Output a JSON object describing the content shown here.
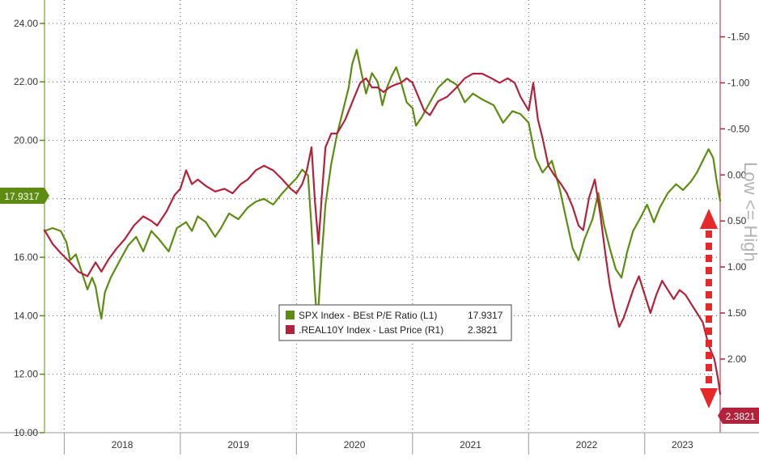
{
  "chart_data": {
    "type": "line",
    "title": "",
    "xlabel": "",
    "ylabel": "",
    "x_ticks": [
      "2018",
      "2019",
      "2020",
      "2021",
      "2022",
      "2023"
    ],
    "xlim": [
      2017.83,
      2023.65
    ],
    "y_left": {
      "lim": [
        10,
        24.8
      ],
      "ticks": [
        "10.00",
        "12.00",
        "14.00",
        "16.00",
        "18.00",
        "20.00",
        "22.00",
        "24.00"
      ]
    },
    "y_right": {
      "lim": [
        -1.9,
        2.8
      ],
      "inverted": true,
      "ticks": [
        "-1.50",
        "-1.00",
        "-0.50",
        "0.00",
        "0.50",
        "1.00",
        "1.50",
        "2.00"
      ]
    },
    "right_axis_annotation": "Low <= High",
    "grid": true,
    "legend_position": "bottom-center",
    "series": [
      {
        "name": "SPX Index - BEst P/E Ratio (L1)",
        "last_value": "17.9317",
        "axis": "left",
        "color": "#5e8c12",
        "points": [
          [
            2017.83,
            16.9
          ],
          [
            2017.9,
            17.0
          ],
          [
            2017.97,
            16.9
          ],
          [
            2018.02,
            16.5
          ],
          [
            2018.05,
            15.9
          ],
          [
            2018.1,
            16.1
          ],
          [
            2018.15,
            15.5
          ],
          [
            2018.2,
            14.9
          ],
          [
            2018.24,
            15.3
          ],
          [
            2018.27,
            15.0
          ],
          [
            2018.3,
            14.3
          ],
          [
            2018.32,
            13.9
          ],
          [
            2018.35,
            14.8
          ],
          [
            2018.4,
            15.3
          ],
          [
            2018.48,
            15.9
          ],
          [
            2018.55,
            16.4
          ],
          [
            2018.62,
            16.7
          ],
          [
            2018.68,
            16.2
          ],
          [
            2018.75,
            16.9
          ],
          [
            2018.82,
            16.6
          ],
          [
            2018.9,
            16.2
          ],
          [
            2018.97,
            17.0
          ],
          [
            2019.05,
            17.2
          ],
          [
            2019.1,
            16.9
          ],
          [
            2019.15,
            17.4
          ],
          [
            2019.22,
            17.2
          ],
          [
            2019.3,
            16.7
          ],
          [
            2019.35,
            17.0
          ],
          [
            2019.42,
            17.5
          ],
          [
            2019.5,
            17.3
          ],
          [
            2019.58,
            17.7
          ],
          [
            2019.65,
            17.9
          ],
          [
            2019.72,
            18.0
          ],
          [
            2019.8,
            17.8
          ],
          [
            2019.88,
            18.2
          ],
          [
            2019.95,
            18.5
          ],
          [
            2020.0,
            18.7
          ],
          [
            2020.05,
            19.0
          ],
          [
            2020.1,
            18.8
          ],
          [
            2020.13,
            17.0
          ],
          [
            2020.16,
            14.8
          ],
          [
            2020.18,
            13.7
          ],
          [
            2020.21,
            15.6
          ],
          [
            2020.25,
            17.8
          ],
          [
            2020.3,
            19.2
          ],
          [
            2020.35,
            20.2
          ],
          [
            2020.4,
            21.0
          ],
          [
            2020.45,
            21.8
          ],
          [
            2020.48,
            22.6
          ],
          [
            2020.52,
            23.1
          ],
          [
            2020.56,
            22.3
          ],
          [
            2020.6,
            21.6
          ],
          [
            2020.65,
            22.3
          ],
          [
            2020.7,
            22.0
          ],
          [
            2020.74,
            21.2
          ],
          [
            2020.78,
            21.8
          ],
          [
            2020.82,
            22.2
          ],
          [
            2020.86,
            22.5
          ],
          [
            2020.9,
            22.0
          ],
          [
            2020.95,
            21.3
          ],
          [
            2021.0,
            21.1
          ],
          [
            2021.03,
            20.5
          ],
          [
            2021.08,
            20.8
          ],
          [
            2021.15,
            21.3
          ],
          [
            2021.22,
            21.8
          ],
          [
            2021.3,
            22.1
          ],
          [
            2021.38,
            21.9
          ],
          [
            2021.45,
            21.3
          ],
          [
            2021.52,
            21.6
          ],
          [
            2021.6,
            21.4
          ],
          [
            2021.7,
            21.2
          ],
          [
            2021.78,
            20.6
          ],
          [
            2021.86,
            21.0
          ],
          [
            2021.93,
            20.9
          ],
          [
            2022.0,
            20.6
          ],
          [
            2022.06,
            19.4
          ],
          [
            2022.12,
            18.9
          ],
          [
            2022.2,
            19.3
          ],
          [
            2022.27,
            18.3
          ],
          [
            2022.33,
            17.2
          ],
          [
            2022.38,
            16.3
          ],
          [
            2022.43,
            15.9
          ],
          [
            2022.48,
            16.6
          ],
          [
            2022.55,
            17.3
          ],
          [
            2022.6,
            18.2
          ],
          [
            2022.65,
            17.1
          ],
          [
            2022.7,
            16.3
          ],
          [
            2022.75,
            15.6
          ],
          [
            2022.8,
            15.3
          ],
          [
            2022.85,
            16.2
          ],
          [
            2022.9,
            16.9
          ],
          [
            2022.97,
            17.4
          ],
          [
            2023.02,
            17.8
          ],
          [
            2023.08,
            17.2
          ],
          [
            2023.13,
            17.7
          ],
          [
            2023.2,
            18.2
          ],
          [
            2023.27,
            18.5
          ],
          [
            2023.33,
            18.3
          ],
          [
            2023.4,
            18.6
          ],
          [
            2023.45,
            18.9
          ],
          [
            2023.5,
            19.3
          ],
          [
            2023.55,
            19.7
          ],
          [
            2023.59,
            19.4
          ],
          [
            2023.62,
            18.6
          ],
          [
            2023.65,
            17.93
          ]
        ]
      },
      {
        "name": ".REAL10Y Index - Last Price (R1)",
        "last_value": "2.3821",
        "axis": "right",
        "color": "#b2223a",
        "points": [
          [
            2017.83,
            0.6
          ],
          [
            2017.9,
            0.75
          ],
          [
            2017.97,
            0.85
          ],
          [
            2018.05,
            0.95
          ],
          [
            2018.12,
            1.05
          ],
          [
            2018.2,
            1.1
          ],
          [
            2018.27,
            0.95
          ],
          [
            2018.32,
            1.05
          ],
          [
            2018.38,
            0.92
          ],
          [
            2018.45,
            0.8
          ],
          [
            2018.52,
            0.7
          ],
          [
            2018.6,
            0.55
          ],
          [
            2018.68,
            0.45
          ],
          [
            2018.75,
            0.5
          ],
          [
            2018.8,
            0.55
          ],
          [
            2018.88,
            0.4
          ],
          [
            2018.95,
            0.22
          ],
          [
            2019.0,
            0.15
          ],
          [
            2019.05,
            -0.05
          ],
          [
            2019.1,
            0.1
          ],
          [
            2019.15,
            0.05
          ],
          [
            2019.22,
            0.12
          ],
          [
            2019.3,
            0.18
          ],
          [
            2019.38,
            0.15
          ],
          [
            2019.45,
            0.2
          ],
          [
            2019.52,
            0.1
          ],
          [
            2019.58,
            0.05
          ],
          [
            2019.65,
            -0.05
          ],
          [
            2019.72,
            -0.1
          ],
          [
            2019.8,
            -0.05
          ],
          [
            2019.88,
            0.05
          ],
          [
            2019.95,
            0.15
          ],
          [
            2020.0,
            0.2
          ],
          [
            2020.05,
            0.1
          ],
          [
            2020.09,
            -0.05
          ],
          [
            2020.13,
            -0.3
          ],
          [
            2020.16,
            0.3
          ],
          [
            2020.19,
            0.75
          ],
          [
            2020.22,
            0.2
          ],
          [
            2020.25,
            -0.3
          ],
          [
            2020.3,
            -0.45
          ],
          [
            2020.35,
            -0.45
          ],
          [
            2020.42,
            -0.6
          ],
          [
            2020.5,
            -0.85
          ],
          [
            2020.55,
            -1.0
          ],
          [
            2020.6,
            -1.05
          ],
          [
            2020.65,
            -0.95
          ],
          [
            2020.7,
            -0.95
          ],
          [
            2020.75,
            -0.9
          ],
          [
            2020.8,
            -0.95
          ],
          [
            2020.85,
            -0.98
          ],
          [
            2020.9,
            -1.0
          ],
          [
            2020.95,
            -1.05
          ],
          [
            2021.0,
            -1.0
          ],
          [
            2021.05,
            -0.85
          ],
          [
            2021.1,
            -0.7
          ],
          [
            2021.15,
            -0.65
          ],
          [
            2021.22,
            -0.8
          ],
          [
            2021.3,
            -0.85
          ],
          [
            2021.38,
            -0.95
          ],
          [
            2021.45,
            -1.05
          ],
          [
            2021.52,
            -1.1
          ],
          [
            2021.6,
            -1.1
          ],
          [
            2021.68,
            -1.05
          ],
          [
            2021.75,
            -1.0
          ],
          [
            2021.82,
            -1.05
          ],
          [
            2021.88,
            -1.0
          ],
          [
            2021.93,
            -0.85
          ],
          [
            2022.0,
            -0.7
          ],
          [
            2022.04,
            -1.0
          ],
          [
            2022.08,
            -0.6
          ],
          [
            2022.12,
            -0.4
          ],
          [
            2022.17,
            -0.1
          ],
          [
            2022.22,
            0.0
          ],
          [
            2022.28,
            0.1
          ],
          [
            2022.33,
            0.2
          ],
          [
            2022.38,
            0.35
          ],
          [
            2022.43,
            0.55
          ],
          [
            2022.47,
            0.6
          ],
          [
            2022.52,
            0.25
          ],
          [
            2022.57,
            0.05
          ],
          [
            2022.62,
            0.45
          ],
          [
            2022.66,
            0.85
          ],
          [
            2022.7,
            1.2
          ],
          [
            2022.74,
            1.45
          ],
          [
            2022.78,
            1.65
          ],
          [
            2022.82,
            1.55
          ],
          [
            2022.86,
            1.4
          ],
          [
            2022.9,
            1.25
          ],
          [
            2022.95,
            1.1
          ],
          [
            2023.0,
            1.3
          ],
          [
            2023.05,
            1.5
          ],
          [
            2023.1,
            1.3
          ],
          [
            2023.15,
            1.15
          ],
          [
            2023.2,
            1.25
          ],
          [
            2023.25,
            1.35
          ],
          [
            2023.3,
            1.25
          ],
          [
            2023.35,
            1.3
          ],
          [
            2023.4,
            1.4
          ],
          [
            2023.45,
            1.5
          ],
          [
            2023.5,
            1.6
          ],
          [
            2023.55,
            1.85
          ],
          [
            2023.6,
            2.0
          ],
          [
            2023.63,
            2.2
          ],
          [
            2023.65,
            2.38
          ]
        ]
      }
    ]
  }
}
